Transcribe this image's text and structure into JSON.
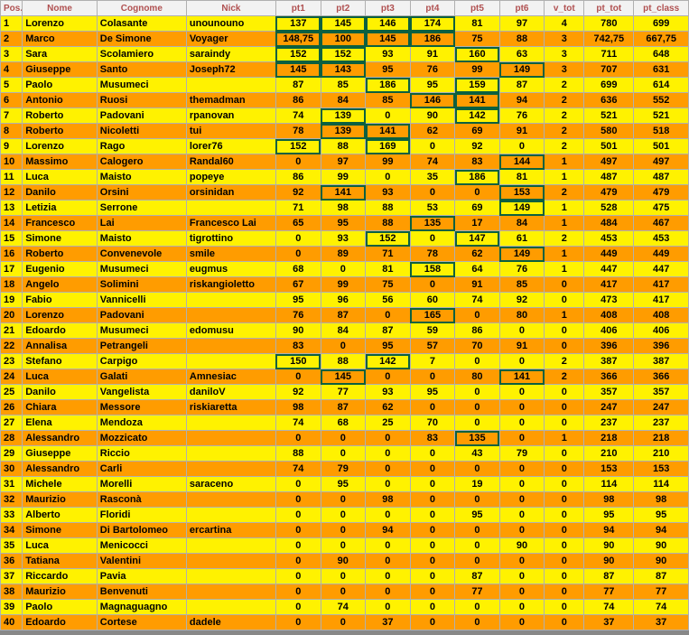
{
  "colors": {
    "odd_row": "#fff200",
    "even_row": "#ff9c00",
    "header_bg": "#f2f2f2",
    "header_text": "#b05050",
    "highlight_border": "#0c6040",
    "grid_border": "#b0b0b0"
  },
  "headers": [
    "Pos.",
    "Nome",
    "Cognome",
    "Nick",
    "pt1",
    "pt2",
    "pt3",
    "pt4",
    "pt5",
    "pt6",
    "v_tot",
    "pt_tot",
    "pt_class"
  ],
  "col_classes": [
    "pos",
    "nome",
    "cognome",
    "nick",
    "pt",
    "pt",
    "pt",
    "pt",
    "pt",
    "pt",
    "vtot",
    "pttot",
    "ptclass"
  ],
  "rows": [
    {
      "c": [
        "1",
        "Lorenzo",
        "Colasante",
        "unounouno",
        "137",
        "145",
        "146",
        "174",
        "81",
        "97",
        "4",
        "780",
        "699"
      ],
      "hl": [
        4,
        5,
        6,
        7
      ]
    },
    {
      "c": [
        "2",
        "Marco",
        "De Simone",
        "Voyager",
        "148,75",
        "100",
        "145",
        "186",
        "75",
        "88",
        "3",
        "742,75",
        "667,75"
      ],
      "hl": [
        4,
        5,
        6,
        7
      ]
    },
    {
      "c": [
        "3",
        "Sara",
        "Scolamiero",
        "saraindy",
        "152",
        "152",
        "93",
        "91",
        "160",
        "63",
        "3",
        "711",
        "648"
      ],
      "hl": [
        4,
        5,
        8
      ]
    },
    {
      "c": [
        "4",
        "Giuseppe",
        "Santo",
        "Joseph72",
        "145",
        "143",
        "95",
        "76",
        "99",
        "149",
        "3",
        "707",
        "631"
      ],
      "hl": [
        4,
        5,
        9
      ]
    },
    {
      "c": [
        "5",
        "Paolo",
        "Musumeci",
        "",
        "87",
        "85",
        "186",
        "95",
        "159",
        "87",
        "2",
        "699",
        "614"
      ],
      "hl": [
        6,
        8
      ]
    },
    {
      "c": [
        "6",
        "Antonio",
        "Ruosi",
        "themadman",
        "86",
        "84",
        "85",
        "146",
        "141",
        "94",
        "2",
        "636",
        "552"
      ],
      "hl": [
        7,
        8
      ]
    },
    {
      "c": [
        "7",
        "Roberto",
        "Padovani",
        "rpanovan",
        "74",
        "139",
        "0",
        "90",
        "142",
        "76",
        "2",
        "521",
        "521"
      ],
      "hl": [
        5,
        8
      ]
    },
    {
      "c": [
        "8",
        "Roberto",
        "Nicoletti",
        "tui",
        "78",
        "139",
        "141",
        "62",
        "69",
        "91",
        "2",
        "580",
        "518"
      ],
      "hl": [
        5,
        6
      ]
    },
    {
      "c": [
        "9",
        "Lorenzo",
        "Rago",
        "lorer76",
        "152",
        "88",
        "169",
        "0",
        "92",
        "0",
        "2",
        "501",
        "501"
      ],
      "hl": [
        4,
        6
      ]
    },
    {
      "c": [
        "10",
        "Massimo",
        "Calogero",
        "Randal60",
        "0",
        "97",
        "99",
        "74",
        "83",
        "144",
        "1",
        "497",
        "497"
      ],
      "hl": [
        9
      ]
    },
    {
      "c": [
        "11",
        "Luca",
        "Maisto",
        "popeye",
        "86",
        "99",
        "0",
        "35",
        "186",
        "81",
        "1",
        "487",
        "487"
      ],
      "hl": [
        8
      ]
    },
    {
      "c": [
        "12",
        "Danilo",
        "Orsini",
        "orsinidan",
        "92",
        "141",
        "93",
        "0",
        "0",
        "153",
        "2",
        "479",
        "479"
      ],
      "hl": [
        5,
        9
      ]
    },
    {
      "c": [
        "13",
        "Letizia",
        "Serrone",
        "",
        "71",
        "98",
        "88",
        "53",
        "69",
        "149",
        "1",
        "528",
        "475"
      ],
      "hl": [
        9
      ]
    },
    {
      "c": [
        "14",
        "Francesco",
        "Lai",
        "Francesco Lai",
        "65",
        "95",
        "88",
        "135",
        "17",
        "84",
        "1",
        "484",
        "467"
      ],
      "hl": [
        7
      ]
    },
    {
      "c": [
        "15",
        "Simone",
        "Maisto",
        "tigrottino",
        "0",
        "93",
        "152",
        "0",
        "147",
        "61",
        "2",
        "453",
        "453"
      ],
      "hl": [
        6,
        8
      ]
    },
    {
      "c": [
        "16",
        "Roberto",
        "Convenevole",
        "smile",
        "0",
        "89",
        "71",
        "78",
        "62",
        "149",
        "1",
        "449",
        "449"
      ],
      "hl": [
        9
      ]
    },
    {
      "c": [
        "17",
        "Eugenio",
        "Musumeci",
        "eugmus",
        "68",
        "0",
        "81",
        "158",
        "64",
        "76",
        "1",
        "447",
        "447"
      ],
      "hl": [
        7
      ]
    },
    {
      "c": [
        "18",
        "Angelo",
        "Solimini",
        "riskangioletto",
        "67",
        "99",
        "75",
        "0",
        "91",
        "85",
        "0",
        "417",
        "417"
      ],
      "hl": []
    },
    {
      "c": [
        "19",
        "Fabio",
        "Vannicelli",
        "",
        "95",
        "96",
        "56",
        "60",
        "74",
        "92",
        "0",
        "473",
        "417"
      ],
      "hl": []
    },
    {
      "c": [
        "20",
        "Lorenzo",
        "Padovani",
        "",
        "76",
        "87",
        "0",
        "165",
        "0",
        "80",
        "1",
        "408",
        "408"
      ],
      "hl": [
        7
      ]
    },
    {
      "c": [
        "21",
        "Edoardo",
        "Musumeci",
        "edomusu",
        "90",
        "84",
        "87",
        "59",
        "86",
        "0",
        "0",
        "406",
        "406"
      ],
      "hl": []
    },
    {
      "c": [
        "22",
        "Annalisa",
        "Petrangeli",
        "",
        "83",
        "0",
        "95",
        "57",
        "70",
        "91",
        "0",
        "396",
        "396"
      ],
      "hl": []
    },
    {
      "c": [
        "23",
        "Stefano",
        "Carpigo",
        "",
        "150",
        "88",
        "142",
        "7",
        "0",
        "0",
        "2",
        "387",
        "387"
      ],
      "hl": [
        4,
        6
      ]
    },
    {
      "c": [
        "24",
        "Luca",
        "Galati",
        "Amnesiac",
        "0",
        "145",
        "0",
        "0",
        "80",
        "141",
        "2",
        "366",
        "366"
      ],
      "hl": [
        5,
        9
      ]
    },
    {
      "c": [
        "25",
        "Danilo",
        "Vangelista",
        "daniloV",
        "92",
        "77",
        "93",
        "95",
        "0",
        "0",
        "0",
        "357",
        "357"
      ],
      "hl": []
    },
    {
      "c": [
        "26",
        "Chiara",
        "Messore",
        "riskiaretta",
        "98",
        "87",
        "62",
        "0",
        "0",
        "0",
        "0",
        "247",
        "247"
      ],
      "hl": []
    },
    {
      "c": [
        "27",
        "Elena",
        "Mendoza",
        "",
        "74",
        "68",
        "25",
        "70",
        "0",
        "0",
        "0",
        "237",
        "237"
      ],
      "hl": []
    },
    {
      "c": [
        "28",
        "Alessandro",
        "Mozzicato",
        "",
        "0",
        "0",
        "0",
        "83",
        "135",
        "0",
        "1",
        "218",
        "218"
      ],
      "hl": [
        8
      ]
    },
    {
      "c": [
        "29",
        "Giuseppe",
        "Riccio",
        "",
        "88",
        "0",
        "0",
        "0",
        "43",
        "79",
        "0",
        "210",
        "210"
      ],
      "hl": []
    },
    {
      "c": [
        "30",
        "Alessandro",
        "Carli",
        "",
        "74",
        "79",
        "0",
        "0",
        "0",
        "0",
        "0",
        "153",
        "153"
      ],
      "hl": []
    },
    {
      "c": [
        "31",
        "Michele",
        "Morelli",
        "saraceno",
        "0",
        "95",
        "0",
        "0",
        "19",
        "0",
        "0",
        "114",
        "114"
      ],
      "hl": []
    },
    {
      "c": [
        "32",
        "Maurizio",
        "Rasconà",
        "",
        "0",
        "0",
        "98",
        "0",
        "0",
        "0",
        "0",
        "98",
        "98"
      ],
      "hl": []
    },
    {
      "c": [
        "33",
        "Alberto",
        "Floridi",
        "",
        "0",
        "0",
        "0",
        "0",
        "95",
        "0",
        "0",
        "95",
        "95"
      ],
      "hl": []
    },
    {
      "c": [
        "34",
        "Simone",
        "Di Bartolomeo",
        "ercartina",
        "0",
        "0",
        "94",
        "0",
        "0",
        "0",
        "0",
        "94",
        "94"
      ],
      "hl": []
    },
    {
      "c": [
        "35",
        "Luca",
        "Menicocci",
        "",
        "0",
        "0",
        "0",
        "0",
        "0",
        "90",
        "0",
        "90",
        "90"
      ],
      "hl": []
    },
    {
      "c": [
        "36",
        "Tatiana",
        "Valentini",
        "",
        "0",
        "90",
        "0",
        "0",
        "0",
        "0",
        "0",
        "90",
        "90"
      ],
      "hl": []
    },
    {
      "c": [
        "37",
        "Riccardo",
        "Pavia",
        "",
        "0",
        "0",
        "0",
        "0",
        "87",
        "0",
        "0",
        "87",
        "87"
      ],
      "hl": []
    },
    {
      "c": [
        "38",
        "Maurizio",
        "Benvenuti",
        "",
        "0",
        "0",
        "0",
        "0",
        "77",
        "0",
        "0",
        "77",
        "77"
      ],
      "hl": []
    },
    {
      "c": [
        "39",
        "Paolo",
        "Magnaguagno",
        "",
        "0",
        "74",
        "0",
        "0",
        "0",
        "0",
        "0",
        "74",
        "74"
      ],
      "hl": []
    },
    {
      "c": [
        "40",
        "Edoardo",
        "Cortese",
        "dadele",
        "0",
        "0",
        "37",
        "0",
        "0",
        "0",
        "0",
        "37",
        "37"
      ],
      "hl": []
    }
  ]
}
